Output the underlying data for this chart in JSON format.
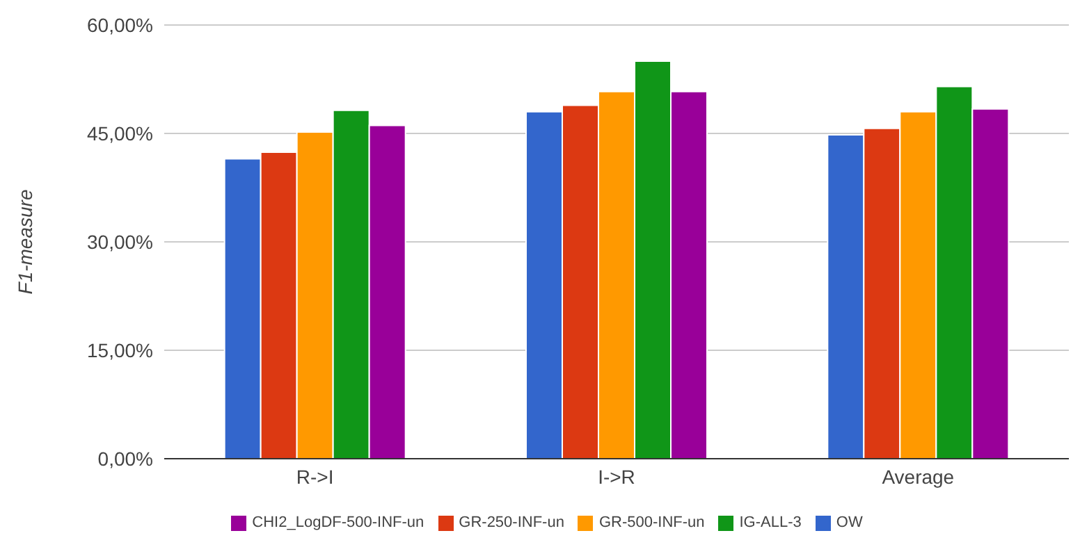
{
  "chart_data": {
    "type": "bar",
    "ylabel": "F1-measure",
    "categories": [
      "R->I",
      "I->R",
      "Average"
    ],
    "series": [
      {
        "name": "OW",
        "color": "#3366cc",
        "values": [
          41.5,
          48.0,
          44.8
        ]
      },
      {
        "name": "GR-250-INF-un",
        "color": "#dc3912",
        "values": [
          42.4,
          48.9,
          45.7
        ]
      },
      {
        "name": "GR-500-INF-un",
        "color": "#ff9900",
        "values": [
          45.2,
          50.8,
          48.0
        ]
      },
      {
        "name": "IG-ALL-3",
        "color": "#109618",
        "values": [
          48.2,
          55.0,
          51.5
        ]
      },
      {
        "name": "CHI2_LogDF-500-INF-un",
        "color": "#990099",
        "values": [
          46.1,
          50.8,
          48.4
        ]
      }
    ],
    "ylim": [
      0,
      60
    ],
    "yticks": [
      {
        "value": 0,
        "label": "0,00%"
      },
      {
        "value": 15,
        "label": "15,00%"
      },
      {
        "value": 30,
        "label": "30,00%"
      },
      {
        "value": 45,
        "label": "45,00%"
      },
      {
        "value": 60,
        "label": "60,00%"
      }
    ],
    "grid": "y",
    "legend": "bottom"
  }
}
